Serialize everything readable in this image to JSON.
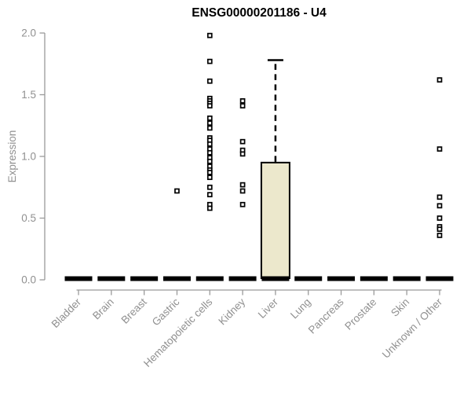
{
  "chart_data": {
    "type": "boxplot",
    "title": "ENSG00000201186 - U4",
    "ylabel": "Expression",
    "xlabel": "",
    "ylim": [
      0.0,
      2.0
    ],
    "grid": false,
    "legend": "none",
    "yticks": [
      {
        "value": 0.0,
        "label": "0.0"
      },
      {
        "value": 0.5,
        "label": "0.5"
      },
      {
        "value": 1.0,
        "label": "1.0"
      },
      {
        "value": 1.5,
        "label": "1.5"
      },
      {
        "value": 2.0,
        "label": "2.0"
      }
    ],
    "categories": [
      "Bladder",
      "Brain",
      "Breast",
      "Gastric",
      "Hematopoietic cells",
      "Kidney",
      "Liver",
      "Lung",
      "Pancreas",
      "Prostate",
      "Skin",
      "Unknown / Other"
    ],
    "boxes": [
      {
        "category": "Bladder",
        "q1": 0,
        "median": 0,
        "q3": 0,
        "whisker_high": 0,
        "outliers": []
      },
      {
        "category": "Brain",
        "q1": 0,
        "median": 0,
        "q3": 0,
        "whisker_high": 0,
        "outliers": []
      },
      {
        "category": "Breast",
        "q1": 0,
        "median": 0,
        "q3": 0,
        "whisker_high": 0,
        "outliers": []
      },
      {
        "category": "Gastric",
        "q1": 0,
        "median": 0,
        "q3": 0,
        "whisker_high": 0,
        "outliers": [
          0.72
        ]
      },
      {
        "category": "Hematopoietic cells",
        "q1": 0,
        "median": 0,
        "q3": 0,
        "whisker_high": 0,
        "outliers": [
          1.98,
          1.77,
          1.61,
          1.47,
          1.45,
          1.43,
          1.41,
          1.31,
          1.27,
          1.23,
          1.15,
          1.13,
          1.1,
          1.06,
          1.03,
          0.99,
          0.96,
          0.92,
          0.89,
          0.87,
          0.83,
          0.75,
          0.69,
          0.61,
          0.58
        ]
      },
      {
        "category": "Kidney",
        "q1": 0,
        "median": 0,
        "q3": 0,
        "whisker_high": 0,
        "outliers": [
          1.45,
          1.41,
          1.12,
          1.05,
          1.02,
          0.77,
          0.72,
          0.61
        ]
      },
      {
        "category": "Liver",
        "q1": 0,
        "median": 0,
        "q3": 0.95,
        "whisker_high": 1.78,
        "outliers": []
      },
      {
        "category": "Lung",
        "q1": 0,
        "median": 0,
        "q3": 0,
        "whisker_high": 0,
        "outliers": []
      },
      {
        "category": "Pancreas",
        "q1": 0,
        "median": 0,
        "q3": 0,
        "whisker_high": 0,
        "outliers": []
      },
      {
        "category": "Prostate",
        "q1": 0,
        "median": 0,
        "q3": 0,
        "whisker_high": 0,
        "outliers": []
      },
      {
        "category": "Skin",
        "q1": 0,
        "median": 0,
        "q3": 0,
        "whisker_high": 0,
        "outliers": []
      },
      {
        "category": "Unknown / Other",
        "q1": 0,
        "median": 0,
        "q3": 0,
        "whisker_high": 0,
        "outliers": [
          1.62,
          1.06,
          0.67,
          0.6,
          0.5,
          0.43,
          0.41,
          0.36
        ]
      }
    ],
    "colors": {
      "box_fill": "#ECE8CC",
      "box_stroke": "#000000",
      "median_bar": "#000000",
      "outlier_stroke": "#000000",
      "axis": "#9a9a9a",
      "tick_text": "#909090",
      "title_text": "#000000",
      "background": "#ffffff"
    }
  }
}
